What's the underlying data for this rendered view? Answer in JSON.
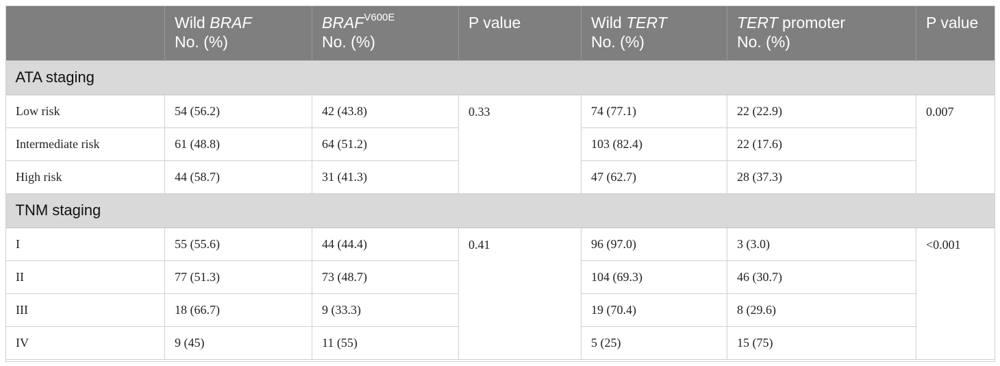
{
  "header": {
    "col1": {
      "line1_pre": "Wild ",
      "line1_it": "BRAF",
      "line2": "No. (%)"
    },
    "col2": {
      "line1_it": "BRAF",
      "line1_sup": "V600E",
      "line2": "No. (%)"
    },
    "col3": {
      "line1": "P value"
    },
    "col4": {
      "line1_pre": "Wild ",
      "line1_it": "TERT",
      "line2": "No. (%)"
    },
    "col5": {
      "line1_it": "TERT",
      "line1_post": " promoter",
      "line2": "No. (%)"
    },
    "col6": {
      "line1": "P value"
    }
  },
  "sections": [
    {
      "title": "ATA staging",
      "braf_p": "0.33",
      "tert_p": "0.007",
      "rows": [
        {
          "label": "Low risk",
          "wild_braf": "54 (56.2)",
          "braf_v600e": "42 (43.8)",
          "wild_tert": "74 (77.1)",
          "tert_promoter": "22 (22.9)"
        },
        {
          "label": "Intermediate risk",
          "wild_braf": "61 (48.8)",
          "braf_v600e": "64 (51.2)",
          "wild_tert": "103 (82.4)",
          "tert_promoter": "22 (17.6)"
        },
        {
          "label": "High risk",
          "wild_braf": "44 (58.7)",
          "braf_v600e": "31 (41.3)",
          "wild_tert": "47 (62.7)",
          "tert_promoter": "28 (37.3)"
        }
      ]
    },
    {
      "title": "TNM staging",
      "braf_p": "0.41",
      "tert_p": "<0.001",
      "rows": [
        {
          "label": "I",
          "wild_braf": "55 (55.6)",
          "braf_v600e": "44 (44.4)",
          "wild_tert": "96 (97.0)",
          "tert_promoter": "3 (3.0)"
        },
        {
          "label": "II",
          "wild_braf": "77 (51.3)",
          "braf_v600e": "73 (48.7)",
          "wild_tert": "104 (69.3)",
          "tert_promoter": "46 (30.7)"
        },
        {
          "label": "III",
          "wild_braf": "18 (66.7)",
          "braf_v600e": "9 (33.3)",
          "wild_tert": "19 (70.4)",
          "tert_promoter": "8 (29.6)"
        },
        {
          "label": "IV",
          "wild_braf": "9 (45)",
          "braf_v600e": "11 (55)",
          "wild_tert": "5 (25)",
          "tert_promoter": "15 (75)"
        }
      ]
    }
  ]
}
